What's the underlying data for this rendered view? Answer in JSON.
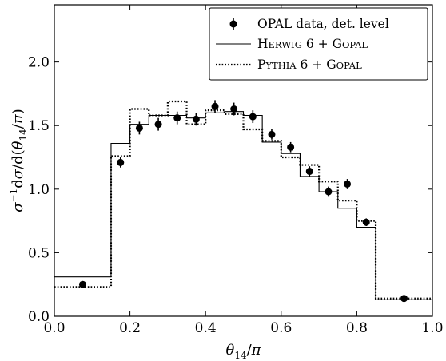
{
  "chart_data": {
    "type": "line",
    "title": "",
    "xlabel": "θ14/π",
    "ylabel": "σ−1dσ/d(θ14/π)",
    "xlim": [
      0.0,
      1.0
    ],
    "ylim": [
      0.0,
      2.45
    ],
    "xticks": [
      0.0,
      0.2,
      0.4,
      0.6,
      0.8,
      1.0
    ],
    "xtick_labels": [
      "0.0",
      "0.2",
      "0.4",
      "0.6",
      "0.8",
      "1.0"
    ],
    "yticks": [
      0.0,
      0.5,
      1.0,
      1.5,
      2.0
    ],
    "ytick_labels": [
      "0.0",
      "0.5",
      "1.0",
      "1.5",
      "2.0"
    ],
    "grid": false,
    "legend_position": "top-right",
    "bin_edges": [
      0.0,
      0.15,
      0.2,
      0.25,
      0.3,
      0.35,
      0.4,
      0.45,
      0.5,
      0.55,
      0.6,
      0.65,
      0.7,
      0.75,
      0.8,
      0.85,
      1.0
    ],
    "series": [
      {
        "name": "OPAL data, det. level",
        "style": "points-with-errorbars",
        "color": "#000000",
        "x": [
          0.075,
          0.175,
          0.225,
          0.275,
          0.325,
          0.375,
          0.425,
          0.475,
          0.525,
          0.575,
          0.625,
          0.675,
          0.725,
          0.775,
          0.825,
          0.925
        ],
        "y": [
          0.25,
          1.21,
          1.48,
          1.51,
          1.56,
          1.55,
          1.65,
          1.63,
          1.57,
          1.43,
          1.33,
          1.14,
          0.98,
          1.04,
          0.74,
          0.14
        ],
        "yerr": [
          0.02,
          0.04,
          0.05,
          0.05,
          0.05,
          0.05,
          0.05,
          0.05,
          0.05,
          0.04,
          0.04,
          0.04,
          0.04,
          0.04,
          0.03,
          0.01
        ]
      },
      {
        "name": "Herwig 6 + Gopal",
        "style": "solid-step",
        "color": "#000000",
        "values": [
          0.31,
          1.36,
          1.51,
          1.58,
          1.58,
          1.56,
          1.6,
          1.61,
          1.58,
          1.37,
          1.28,
          1.1,
          0.98,
          0.85,
          0.7,
          0.13
        ]
      },
      {
        "name": "Pythia 6 + Gopal",
        "style": "dotted-step",
        "color": "#000000",
        "values": [
          0.23,
          1.26,
          1.63,
          1.58,
          1.69,
          1.51,
          1.62,
          1.59,
          1.47,
          1.38,
          1.25,
          1.19,
          1.06,
          0.91,
          0.75,
          0.14
        ]
      }
    ]
  }
}
